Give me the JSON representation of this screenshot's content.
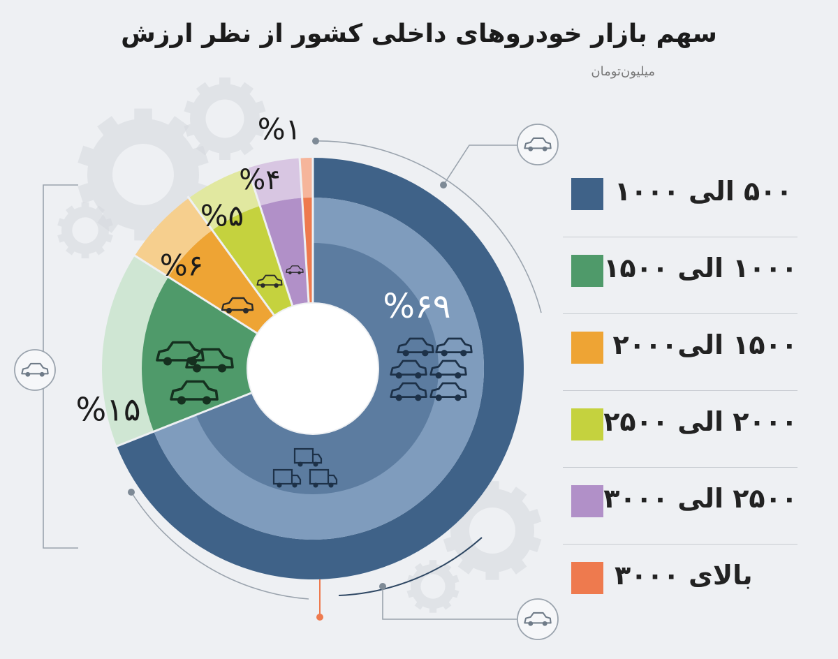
{
  "title": "سهم بازار خودروهای داخلی کشور از نظر ارزش",
  "subtitle": "میلیون‌تومان",
  "colors": {
    "background": "#eef0f3",
    "outer_ring": "#3f6288"
  },
  "chart_data": {
    "type": "pie",
    "title": "سهم بازار خودروهای داخلی کشور از نظر ارزش",
    "subtitle": "میلیون‌تومان",
    "legend_position": "right",
    "categories": [
      "۵۰۰ الی ۱۰۰۰",
      "۱۰۰۰ الی ۱۵۰۰",
      "۱۵۰۰ الی۲۰۰۰",
      "۲۰۰۰ الی ۲۵۰۰",
      "۲۵۰۰ الی ۳۰۰۰",
      "بالای ۳۰۰۰"
    ],
    "values": [
      69,
      15,
      6,
      5,
      4,
      1
    ],
    "value_labels": [
      "%۶۹",
      "%۱۵",
      "%۶",
      "%۵",
      "%۴",
      "%۱"
    ],
    "colors": [
      "#3f6288",
      "#4f9a6a",
      "#eea434",
      "#c5d23e",
      "#b190c8",
      "#ee7a4e"
    ],
    "light_colors": [
      "#7f9cbd",
      "#cfe6d3",
      "#f6cf8e",
      "#e1e8a0",
      "#d8c6e2",
      "#f6b59b"
    ]
  }
}
